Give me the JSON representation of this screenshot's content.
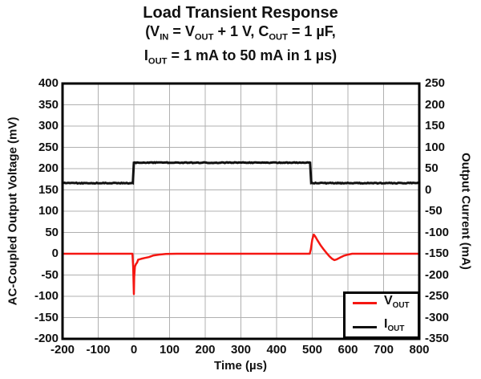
{
  "chart_data": {
    "type": "line",
    "title": "Load Transient Response",
    "subtitle_lines": [
      "(V_{IN} = V_{OUT} + 1 V, C_{OUT} = 1 µF,",
      "I_{OUT} = 1 mA to 50 mA in 1 µs)"
    ],
    "x_axis": {
      "label": "Time (µs)",
      "min": -200,
      "max": 800,
      "tick_step": 100,
      "ticks": [
        -200,
        -100,
        0,
        100,
        200,
        300,
        400,
        500,
        600,
        700,
        800
      ]
    },
    "left_axis": {
      "label": "AC-Coupled Output Voltage (mV)",
      "min": -200,
      "max": 400,
      "tick_step": 50,
      "ticks": [
        400,
        350,
        300,
        250,
        200,
        150,
        100,
        50,
        0,
        -50,
        -100,
        -150,
        -200
      ]
    },
    "right_axis": {
      "label": "Output Current (mA)",
      "min": -350,
      "max": 250,
      "tick_step": 50,
      "ticks": [
        250,
        200,
        150,
        100,
        50,
        0,
        -50,
        -100,
        -150,
        -200,
        -250,
        -300,
        -350
      ]
    },
    "grid": true,
    "grid_color": "#b0b0b0",
    "frame_color": "#000000",
    "background_color": "#ffffff",
    "legend": {
      "position": "bottom-right",
      "entries": [
        {
          "key": "vout",
          "label": "V_{OUT}",
          "color": "#f51712"
        },
        {
          "key": "iout",
          "label": "I_{OUT}",
          "color": "#111111"
        }
      ]
    },
    "series": [
      {
        "key": "iout",
        "name": "I_{OUT}",
        "axis": "right",
        "unit": "mA",
        "color": "#111111",
        "width": 3,
        "noise": 0.9,
        "points": [
          [
            -200,
            16
          ],
          [
            -3,
            16
          ],
          [
            0,
            64
          ],
          [
            494,
            64
          ],
          [
            497,
            16
          ],
          [
            800,
            16
          ]
        ]
      },
      {
        "key": "vout",
        "name": "V_{OUT}",
        "axis": "left",
        "unit": "mV",
        "color": "#f51712",
        "width": 2.5,
        "points": [
          [
            -200,
            0
          ],
          [
            -4,
            0
          ],
          [
            -2,
            -30
          ],
          [
            0,
            -95
          ],
          [
            1,
            -55
          ],
          [
            3,
            -30
          ],
          [
            6,
            -24
          ],
          [
            9,
            -21
          ],
          [
            12,
            -14
          ],
          [
            20,
            -12
          ],
          [
            30,
            -10
          ],
          [
            42,
            -8
          ],
          [
            55,
            -4
          ],
          [
            70,
            -2
          ],
          [
            90,
            -0.5
          ],
          [
            120,
            0
          ],
          [
            480,
            0
          ],
          [
            493,
            0
          ],
          [
            496,
            10
          ],
          [
            500,
            33
          ],
          [
            504,
            45
          ],
          [
            508,
            41
          ],
          [
            515,
            31
          ],
          [
            524,
            19
          ],
          [
            533,
            9
          ],
          [
            541,
            1
          ],
          [
            548,
            -6
          ],
          [
            556,
            -12
          ],
          [
            562,
            -15
          ],
          [
            569,
            -13
          ],
          [
            578,
            -9
          ],
          [
            588,
            -5
          ],
          [
            600,
            -2
          ],
          [
            612,
            0
          ],
          [
            800,
            0
          ]
        ]
      }
    ]
  }
}
